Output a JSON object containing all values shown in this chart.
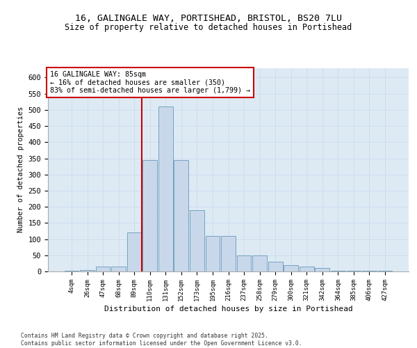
{
  "title_line1": "16, GALINGALE WAY, PORTISHEAD, BRISTOL, BS20 7LU",
  "title_line2": "Size of property relative to detached houses in Portishead",
  "xlabel": "Distribution of detached houses by size in Portishead",
  "ylabel": "Number of detached properties",
  "categories": [
    "4sqm",
    "26sqm",
    "47sqm",
    "68sqm",
    "89sqm",
    "110sqm",
    "131sqm",
    "152sqm",
    "173sqm",
    "195sqm",
    "216sqm",
    "237sqm",
    "258sqm",
    "279sqm",
    "300sqm",
    "321sqm",
    "342sqm",
    "364sqm",
    "385sqm",
    "406sqm",
    "427sqm"
  ],
  "values": [
    2,
    4,
    15,
    15,
    120,
    345,
    510,
    345,
    190,
    110,
    110,
    50,
    50,
    30,
    20,
    15,
    10,
    3,
    2,
    3,
    2
  ],
  "bar_color": "#c8d8ea",
  "bar_edge_color": "#6699bb",
  "grid_color": "#ccddee",
  "background_color": "#ddeaf4",
  "vline_x_index": 4.48,
  "vline_color": "#cc0000",
  "annotation_text": "16 GALINGALE WAY: 85sqm\n← 16% of detached houses are smaller (350)\n83% of semi-detached houses are larger (1,799) →",
  "annotation_box_color": "#ffffff",
  "annotation_box_edge_color": "#cc0000",
  "footer_text": "Contains HM Land Registry data © Crown copyright and database right 2025.\nContains public sector information licensed under the Open Government Licence v3.0.",
  "ylim": [
    0,
    630
  ],
  "yticks": [
    0,
    50,
    100,
    150,
    200,
    250,
    300,
    350,
    400,
    450,
    500,
    550,
    600
  ]
}
